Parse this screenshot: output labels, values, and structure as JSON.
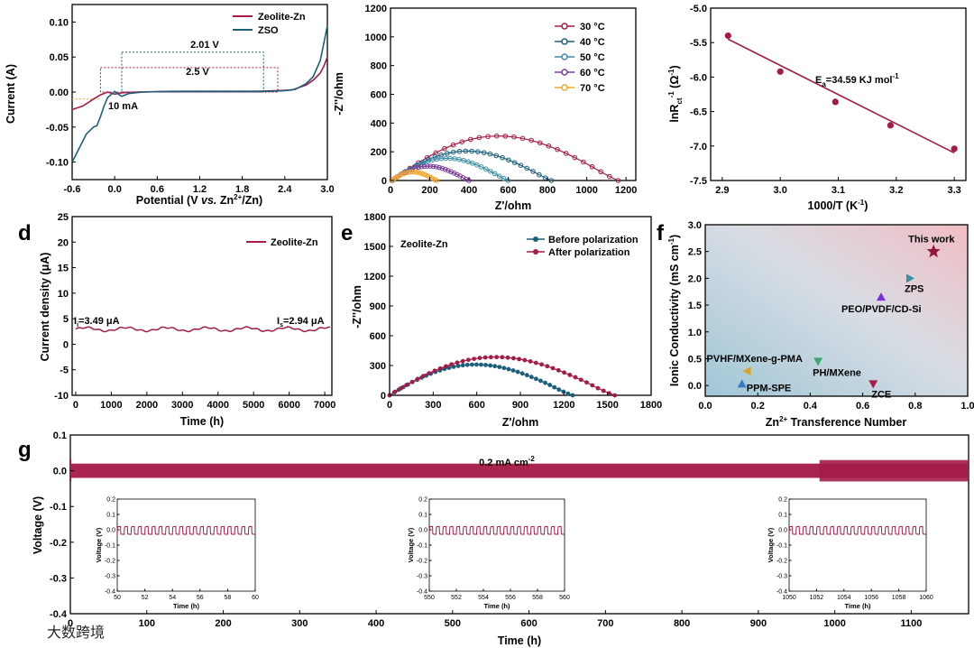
{
  "colors": {
    "red": "#a51c48",
    "blue": "#1d5f7b",
    "teal": "#3e8ea8",
    "purple": "#7a3d99",
    "orange": "#f0a830",
    "salmon": "#ef6b6b",
    "darkred": "#93173d",
    "green": "#3aa576",
    "violet": "#7a2ee0",
    "gold": "#dba52a",
    "royal": "#3a78c8"
  },
  "panels": {
    "d": "d",
    "e": "e",
    "f": "f",
    "g": "g"
  },
  "chart_data": [
    {
      "type": "line",
      "id": "a",
      "xlabel_pre": "Potential (V ",
      "xlabel_vs": "vs.",
      "xlabel_zn": " Zn",
      "xlabel_sup": "2+",
      "xlabel_post": "/Zn)",
      "ylabel": "Current (A)",
      "xlim": [
        -0.6,
        3.0
      ],
      "ylim": [
        -0.125,
        0.125
      ],
      "xticks": [
        "-0.6",
        "0.0",
        "0.6",
        "1.2",
        "1.8",
        "2.4",
        "3.0"
      ],
      "yticks": [
        "-0.10",
        "-0.05",
        "0.00",
        "0.05",
        "0.10"
      ],
      "legend": [
        "Zeolite-Zn",
        "ZSO"
      ],
      "annotations": {
        "w_zso": "2.01 V",
        "w_zn": "2.5 V",
        "cur": "10 mA"
      },
      "windows": {
        "zso": [
          0.1,
          2.1
        ],
        "zn": [
          -0.2,
          2.3
        ],
        "zso_top": 0.057,
        "zn_top": 0.035,
        "ref": -0.01
      },
      "series": [
        {
          "name": "Zeolite-Zn",
          "color": "red",
          "x": [
            -0.6,
            -0.45,
            -0.3,
            -0.2,
            -0.1,
            0.0,
            0.1,
            0.3,
            0.6,
            1.0,
            1.5,
            2.0,
            2.3,
            2.5,
            2.7,
            2.8,
            2.9,
            2.95,
            3.0
          ],
          "y": [
            -0.025,
            -0.02,
            -0.01,
            -0.004,
            0.0,
            -0.003,
            -0.001,
            0.0,
            0.0005,
            0.001,
            0.001,
            0.001,
            0.002,
            0.003,
            0.01,
            0.017,
            0.027,
            0.037,
            0.05
          ]
        },
        {
          "name": "ZSO",
          "color": "blue",
          "x": [
            -0.6,
            -0.5,
            -0.4,
            -0.3,
            -0.25,
            -0.2,
            -0.15,
            -0.1,
            0.0,
            0.05,
            0.1,
            0.2,
            0.4,
            0.8,
            1.2,
            1.6,
            2.0,
            2.2,
            2.4,
            2.55,
            2.7,
            2.8,
            2.9,
            2.95,
            3.0
          ],
          "y": [
            -0.1,
            -0.08,
            -0.06,
            -0.05,
            -0.048,
            -0.035,
            -0.02,
            -0.008,
            0.001,
            -0.003,
            -0.006,
            -0.002,
            0.0,
            0.001,
            0.001,
            0.001,
            0.001,
            0.001,
            0.002,
            0.004,
            0.012,
            0.022,
            0.045,
            0.07,
            0.095
          ]
        }
      ]
    },
    {
      "type": "line",
      "id": "b",
      "xlabel": "Z'/ohm",
      "ylabel": "-Z''/ohm",
      "xlim": [
        0,
        1250
      ],
      "ylim": [
        0,
        1200
      ],
      "xticks": [
        "0",
        "200",
        "400",
        "600",
        "800",
        "1000",
        "1200"
      ],
      "yticks": [
        "0",
        "200",
        "400",
        "600",
        "800",
        "1000",
        "1200"
      ],
      "series": [
        {
          "name": "30 °C",
          "color": "red",
          "r": [
            10,
            1160
          ],
          "peak": 310
        },
        {
          "name": "40 °C",
          "color": "blue",
          "r": [
            8,
            820
          ],
          "peak": 205
        },
        {
          "name": "50 °C",
          "color": "teal",
          "r": [
            8,
            600
          ],
          "peak": 155
        },
        {
          "name": "60 °C",
          "color": "purple",
          "r": [
            6,
            400
          ],
          "peak": 100
        },
        {
          "name": "70 °C",
          "color": "orange",
          "r": [
            5,
            235
          ],
          "peak": 60
        }
      ]
    },
    {
      "type": "scatter",
      "id": "c",
      "xlabel_pre": "1000/T (K",
      "xlabel_sup": "-1",
      "xlabel_post": ")",
      "ylabel": "lnR_ct^-1 (Ω^-1)",
      "ylabel_main": "lnR",
      "ylabel_sub": "ct",
      "ylabel_sup": "-1",
      "ylabel_mid": " (Ω",
      "ylabel_sup2": "-1",
      "ylabel_end": ")",
      "xlim": [
        2.88,
        3.32
      ],
      "ylim": [
        -7.5,
        -5.0
      ],
      "xticks": [
        "2.9",
        "3.0",
        "3.1",
        "3.2",
        "3.3"
      ],
      "yticks": [
        "-5.0",
        "-5.5",
        "-6.0",
        "-6.5",
        "-7.0",
        "-7.5"
      ],
      "ea_pre": "E",
      "ea_sub": "a",
      "ea_post": "=34.59 KJ mol",
      "ea_sup": "-1",
      "x": [
        2.91,
        3.0,
        3.095,
        3.19,
        3.3
      ],
      "y": [
        -5.4,
        -5.92,
        -6.36,
        -6.7,
        -7.04
      ],
      "fit": [
        [
          2.91,
          -5.45
        ],
        [
          3.3,
          -7.1
        ]
      ]
    },
    {
      "type": "line",
      "id": "d",
      "xlabel": "Time (h)",
      "ylabel": "Current density (μA)",
      "xlim": [
        -100,
        7200
      ],
      "ylim": [
        -10,
        25
      ],
      "xticks": [
        "0",
        "1000",
        "2000",
        "3000",
        "4000",
        "5000",
        "6000",
        "7000"
      ],
      "yticks": [
        "-10",
        "-5",
        "0",
        "5",
        "10",
        "15",
        "20",
        "25"
      ],
      "legend": [
        "Zeolite-Zn"
      ],
      "ii_pre": "I",
      "ii_sub": "i",
      "ii_post": "=3.49 μA",
      "is_pre": "I",
      "is_sub": "s",
      "is_post": "=2.94 μA",
      "level": 2.94
    },
    {
      "type": "line",
      "id": "e",
      "title": "Zeolite-Zn",
      "xlabel": "Z'/ohm",
      "ylabel": "-Z''/ohm",
      "xlim": [
        0,
        1800
      ],
      "ylim": [
        0,
        1800
      ],
      "xticks": [
        "0",
        "300",
        "600",
        "900",
        "1200",
        "1500",
        "1800"
      ],
      "yticks": [
        "0",
        "300",
        "600",
        "900",
        "1200",
        "1500",
        "1800"
      ],
      "series": [
        {
          "name": "Before polarization",
          "color": "blue",
          "r": [
            0,
            1260
          ],
          "peak": 310
        },
        {
          "name": "After polarization",
          "color": "red",
          "r": [
            0,
            1550
          ],
          "peak": 385
        }
      ]
    },
    {
      "type": "scatter",
      "id": "f",
      "xlabel_pre": "Zn",
      "xlabel_sup": "2+",
      "xlabel_post": " Transference Number",
      "ylabel_pre": "Ionic Conductivity (mS cm",
      "ylabel_sup": "-1",
      "ylabel_post": ")",
      "xlim": [
        0,
        1
      ],
      "ylim": [
        -0.2,
        3.0
      ],
      "xticks": [
        "0.0",
        "0.2",
        "0.4",
        "0.6",
        "0.8",
        "1.0"
      ],
      "yticks": [
        "0.0",
        "0.5",
        "1.0",
        "1.5",
        "2.0",
        "2.5",
        "3.0"
      ],
      "points": [
        {
          "label": "This work",
          "x": 0.87,
          "y": 2.5,
          "marker": "star",
          "color": "darkred"
        },
        {
          "label": "ZPS",
          "x": 0.78,
          "y": 2.0,
          "marker": "tri-right",
          "color": "teal"
        },
        {
          "label": "PEO/PVDF/CD-Si",
          "x": 0.67,
          "y": 1.65,
          "marker": "tri-up",
          "color": "violet"
        },
        {
          "label": "PH/MXene",
          "x": 0.43,
          "y": 0.45,
          "marker": "tri-down",
          "color": "green"
        },
        {
          "label": "PVHF/MXene-g-PMA",
          "x": 0.16,
          "y": 0.27,
          "marker": "tri-left",
          "color": "gold"
        },
        {
          "label": "PPM-SPE",
          "x": 0.14,
          "y": 0.03,
          "marker": "tri-up",
          "color": "royal"
        },
        {
          "label": "ZCE",
          "x": 0.64,
          "y": 0.03,
          "marker": "tri-down",
          "color": "red"
        }
      ]
    },
    {
      "type": "line",
      "id": "g",
      "xlabel": "Time (h)",
      "ylabel": "Voltage (V)",
      "xlim": [
        0,
        1175
      ],
      "ylim": [
        -0.4,
        0.1
      ],
      "xticks": [
        "0",
        "100",
        "200",
        "300",
        "400",
        "500",
        "600",
        "700",
        "800",
        "900",
        "1000",
        "1100"
      ],
      "yticks": [
        "0.1",
        "0.0",
        "-0.1",
        "-0.2",
        "-0.3",
        "-0.4"
      ],
      "title_pre": "0.2 mA cm",
      "title_sup": "-2",
      "band": [
        -0.02,
        0.02
      ],
      "insets": [
        {
          "xlim": [
            50,
            60
          ],
          "xticks": [
            "50",
            "52",
            "54",
            "56",
            "58",
            "60"
          ]
        },
        {
          "xlim": [
            550,
            560
          ],
          "xticks": [
            "550",
            "552",
            "554",
            "556",
            "558",
            "560"
          ]
        },
        {
          "xlim": [
            1050,
            1060
          ],
          "xticks": [
            "1050",
            "1052",
            "1054",
            "1056",
            "1058",
            "1060"
          ]
        }
      ],
      "inset_ylim": [
        -0.4,
        0.2
      ],
      "inset_yticks": [
        "0.2",
        "0.1",
        "0.0",
        "-0.1",
        "-0.2",
        "-0.3",
        "-0.4"
      ],
      "inset_xlabel": "Time (h)",
      "inset_ylabel": "Voltage (V)"
    }
  ],
  "watermark": "大数跨境"
}
